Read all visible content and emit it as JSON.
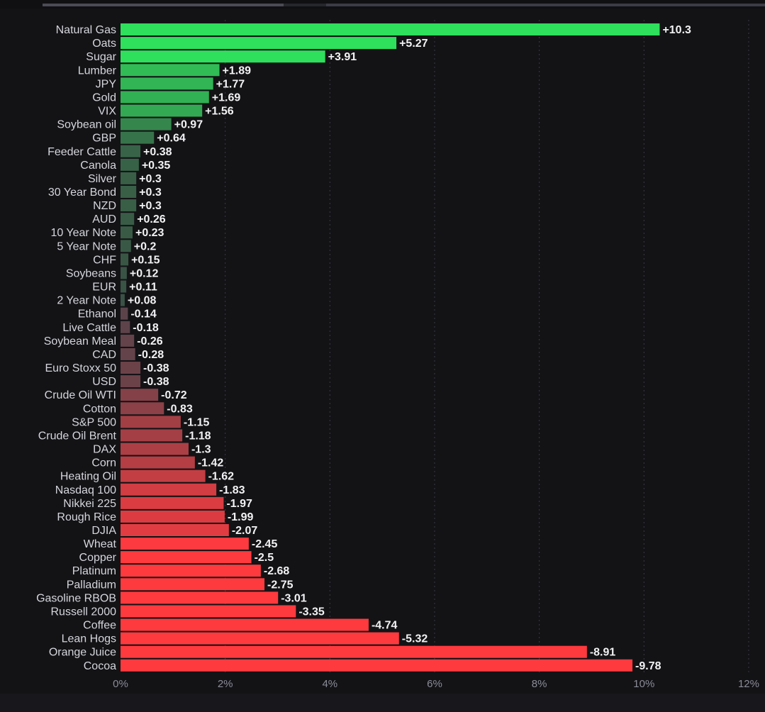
{
  "chart_data": {
    "type": "bar",
    "orientation": "horizontal",
    "xlim": [
      0,
      12
    ],
    "x_unit": "%",
    "xticks": [
      "0%",
      "2%",
      "4%",
      "6%",
      "8%",
      "10%",
      "12%"
    ],
    "grid": true,
    "categories": [
      "Natural Gas",
      "Oats",
      "Sugar",
      "Lumber",
      "JPY",
      "Gold",
      "VIX",
      "Soybean oil",
      "GBP",
      "Feeder Cattle",
      "Canola",
      "Silver",
      "30 Year Bond",
      "NZD",
      "AUD",
      "10 Year Note",
      "5 Year Note",
      "CHF",
      "Soybeans",
      "EUR",
      "2 Year Note",
      "Ethanol",
      "Live Cattle",
      "Soybean Meal",
      "CAD",
      "Euro Stoxx 50",
      "USD",
      "Crude Oil WTI",
      "Cotton",
      "S&P 500",
      "Crude Oil Brent",
      "DAX",
      "Corn",
      "Heating Oil",
      "Nasdaq 100",
      "Nikkei 225",
      "Rough Rice",
      "DJIA",
      "Wheat",
      "Copper",
      "Platinum",
      "Palladium",
      "Gasoline RBOB",
      "Russell 2000",
      "Coffee",
      "Lean Hogs",
      "Orange Juice",
      "Cocoa"
    ],
    "values": [
      10.3,
      5.27,
      3.91,
      1.89,
      1.77,
      1.69,
      1.56,
      0.97,
      0.64,
      0.38,
      0.35,
      0.3,
      0.3,
      0.3,
      0.26,
      0.23,
      0.2,
      0.15,
      0.12,
      0.11,
      0.08,
      -0.14,
      -0.18,
      -0.26,
      -0.28,
      -0.38,
      -0.38,
      -0.72,
      -0.83,
      -1.15,
      -1.18,
      -1.3,
      -1.42,
      -1.62,
      -1.83,
      -1.97,
      -1.99,
      -2.07,
      -2.45,
      -2.5,
      -2.68,
      -2.75,
      -3.01,
      -3.35,
      -4.74,
      -5.32,
      -8.91,
      -9.78
    ],
    "value_labels": [
      "+10.3",
      "+5.27",
      "+3.91",
      "+1.89",
      "+1.77",
      "+1.69",
      "+1.56",
      "+0.97",
      "+0.64",
      "+0.38",
      "+0.35",
      "+0.3",
      "+0.3",
      "+0.3",
      "+0.26",
      "+0.23",
      "+0.2",
      "+0.15",
      "+0.12",
      "+0.11",
      "+0.08",
      "-0.14",
      "-0.18",
      "-0.26",
      "-0.28",
      "-0.38",
      "-0.38",
      "-0.72",
      "-0.83",
      "-1.15",
      "-1.18",
      "-1.3",
      "-1.42",
      "-1.62",
      "-1.83",
      "-1.97",
      "-1.99",
      "-2.07",
      "-2.45",
      "-2.5",
      "-2.68",
      "-2.75",
      "-3.01",
      "-3.35",
      "-4.74",
      "-5.32",
      "-8.91",
      "-9.78"
    ],
    "bar_length": "absolute value",
    "colors": {
      "positive_strong": "#2ee05c",
      "positive_weak": "#3a4d44",
      "negative_weak": "#52444b",
      "negative_strong": "#ff3a3f",
      "background": "#131316",
      "grid": "#3a3b44",
      "category_text": "#d5d6dc",
      "value_text": "#f2f2f5",
      "tick_text": "#8a8c98"
    }
  }
}
